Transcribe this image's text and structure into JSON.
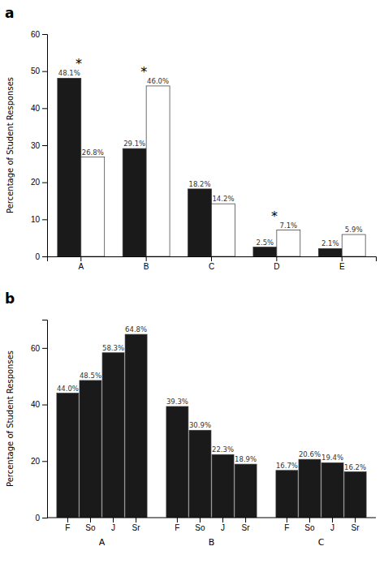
{
  "chart_data": [
    {
      "type": "bar",
      "title": "a",
      "categories": [
        "A",
        "B",
        "C",
        "D",
        "E"
      ],
      "series": [
        {
          "color": "#1a1a1a",
          "values": [
            48.1,
            29.1,
            18.2,
            2.5,
            2.1
          ],
          "value_labels": [
            "48.1%",
            "29.1%",
            "18.2%",
            "2.5%",
            "2.1%"
          ]
        },
        {
          "color": "#ffffff",
          "values": [
            26.8,
            46.0,
            14.2,
            7.1,
            5.9
          ],
          "value_labels": [
            "26.8%",
            "46.0%",
            "14.2%",
            "7.1%",
            "5.9%"
          ]
        }
      ],
      "annotations": [
        {
          "text": "*",
          "category": "A"
        },
        {
          "text": "*",
          "category": "B"
        },
        {
          "text": "*",
          "category": "D"
        }
      ],
      "ylabel": "Percentage of Student Responses",
      "ylim": [
        0,
        60
      ],
      "yticks": [
        0,
        10,
        20,
        30,
        40,
        50,
        60
      ],
      "data_labels": true
    },
    {
      "type": "bar",
      "title": "b",
      "categories": [
        "F",
        "So",
        "J",
        "Sr"
      ],
      "series": [
        {
          "name": "A",
          "color": "#1a1a1a",
          "values": [
            44.0,
            48.5,
            58.3,
            64.8
          ],
          "value_labels": [
            "44.0%",
            "48.5%",
            "58.3%",
            "64.8%"
          ]
        },
        {
          "name": "B",
          "color": "#1a1a1a",
          "values": [
            39.3,
            30.9,
            22.3,
            18.9
          ],
          "value_labels": [
            "39.3%",
            "30.9%",
            "22.3%",
            "18.9%"
          ]
        },
        {
          "name": "C",
          "color": "#1a1a1a",
          "values": [
            16.7,
            20.6,
            19.4,
            16.2
          ],
          "value_labels": [
            "16.7%",
            "20.6%",
            "19.4%",
            "16.2%"
          ]
        }
      ],
      "ylabel": "Percentage of Student Responses",
      "ylim": [
        0,
        70
      ],
      "yticks": [
        0,
        20,
        40,
        60
      ],
      "data_labels": true
    }
  ]
}
